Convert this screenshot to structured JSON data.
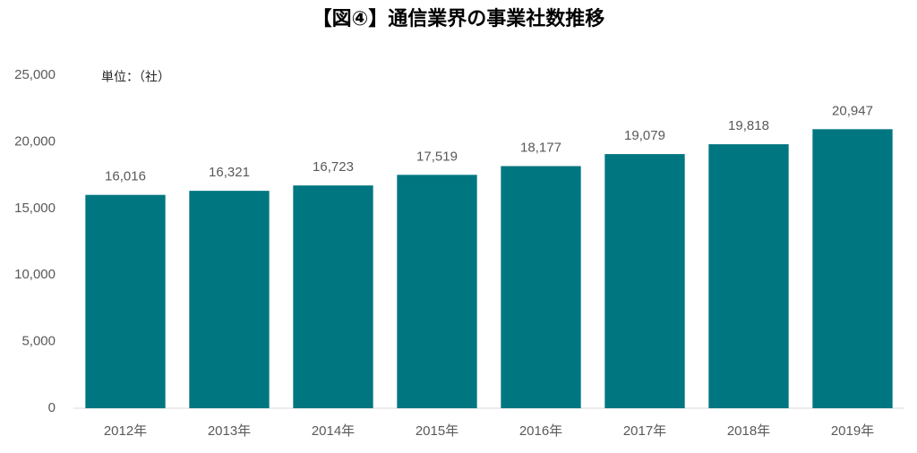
{
  "chart_data": {
    "type": "bar",
    "title": "【図④】通信業界の事業社数推移",
    "annotation": "単位：（社）",
    "categories": [
      "2012年",
      "2013年",
      "2014年",
      "2015年",
      "2016年",
      "2017年",
      "2018年",
      "2019年"
    ],
    "values": [
      16016,
      16321,
      16723,
      17519,
      18177,
      19079,
      19818,
      20947
    ],
    "value_labels": [
      "16,016",
      "16,321",
      "16,723",
      "17,519",
      "18,177",
      "19,079",
      "19,818",
      "20,947"
    ],
    "color": "#007681",
    "ylim": [
      0,
      25000
    ],
    "yticks": [
      0,
      {
        "value": 5000,
        "label": "5,000"
      },
      {
        "value": 10000,
        "label": "10,000"
      },
      {
        "value": 15000,
        "label": "15,000"
      },
      {
        "value": 20000,
        "label": "20,000"
      },
      {
        "value": 25000,
        "label": "25,000"
      }
    ],
    "grid": false
  }
}
